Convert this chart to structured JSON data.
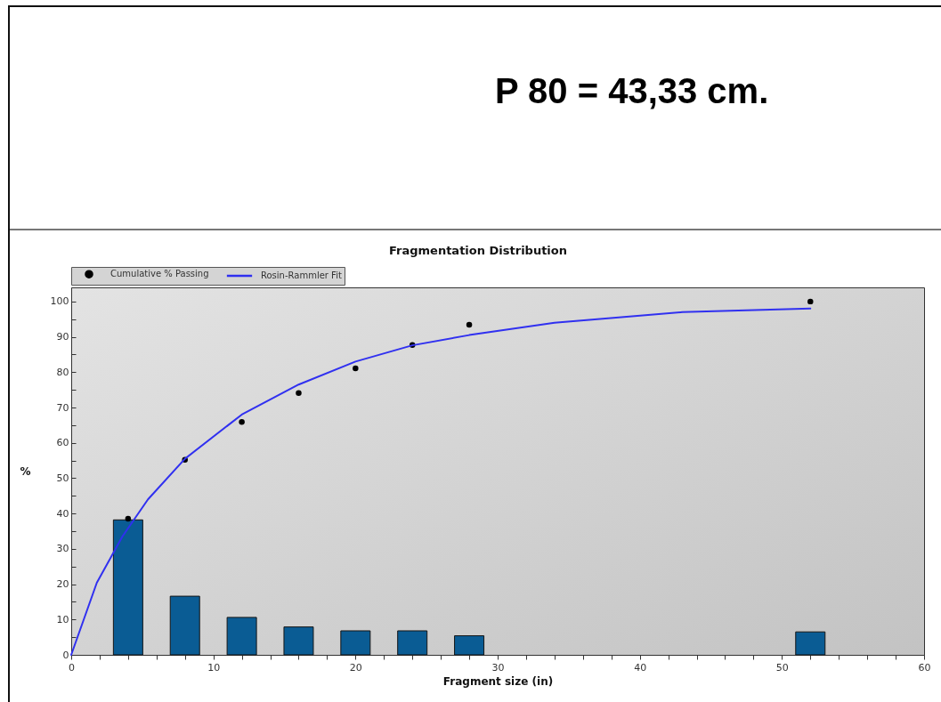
{
  "chart_data": {
    "type": "bar",
    "title": "Fragmentation Distribution",
    "xlabel": "Fragment size (in)",
    "ylabel": "%",
    "annotations": [
      "P 80 = 43,33 cm."
    ],
    "x": [
      4,
      8,
      12,
      16,
      20,
      24,
      28,
      52
    ],
    "series": [
      {
        "color": "#0a5c94",
        "values": [
          38.2,
          16.6,
          10.6,
          7.9,
          6.8,
          6.8,
          5.4,
          6.5
        ]
      },
      {
        "name": "Cumulative % Passing",
        "type": "scatter",
        "color": "#000000",
        "values": [
          38.5,
          55.2,
          65.9,
          74.1,
          81.1,
          87.7,
          93.4,
          100
        ]
      },
      {
        "name": "Rosin-Rammler Fit",
        "type": "line",
        "color": "#3030f0",
        "x": [
          0,
          1.8,
          3.6,
          5.4,
          8,
          12,
          16,
          20,
          24,
          28,
          34,
          43,
          52
        ],
        "values": [
          0,
          20.4,
          33.5,
          44,
          55.5,
          68,
          76.5,
          83,
          87.6,
          90.5,
          94,
          97,
          98
        ]
      }
    ],
    "xlim": [
      0,
      60
    ],
    "ylim": [
      0,
      104
    ],
    "xticks": [
      0,
      {
        "value": 2,
        "label": null
      },
      {
        "value": 4,
        "label": null
      },
      {
        "value": 6,
        "label": null
      },
      {
        "value": 8,
        "label": null
      },
      10,
      {
        "value": 12,
        "label": null
      },
      {
        "value": 14,
        "label": null
      },
      {
        "value": 16,
        "label": null
      },
      {
        "value": 18,
        "label": null
      },
      20,
      {
        "value": 22,
        "label": null
      },
      {
        "value": 24,
        "label": null
      },
      {
        "value": 26,
        "label": null
      },
      {
        "value": 28,
        "label": null
      },
      30,
      {
        "value": 32,
        "label": null
      },
      {
        "value": 34,
        "label": null
      },
      {
        "value": 36,
        "label": null
      },
      {
        "value": 38,
        "label": null
      },
      40,
      {
        "value": 42,
        "label": null
      },
      {
        "value": 44,
        "label": null
      },
      {
        "value": 46,
        "label": null
      },
      {
        "value": 48,
        "label": null
      },
      50,
      {
        "value": 52,
        "label": null
      },
      {
        "value": 54,
        "label": null
      },
      {
        "value": 56,
        "label": null
      },
      {
        "value": 58,
        "label": null
      },
      60
    ],
    "yticks": [
      0,
      {
        "value": 5,
        "label": null
      },
      10,
      {
        "value": 15,
        "label": null
      },
      20,
      {
        "value": 25,
        "label": null
      },
      30,
      {
        "value": 35,
        "label": null
      },
      40,
      {
        "value": 45,
        "label": null
      },
      50,
      {
        "value": 55,
        "label": null
      },
      60,
      {
        "value": 65,
        "label": null
      },
      70,
      {
        "value": 75,
        "label": null
      },
      80,
      {
        "value": 85,
        "label": null
      },
      90,
      {
        "value": 95,
        "label": null
      },
      100
    ],
    "legend": "top left"
  }
}
